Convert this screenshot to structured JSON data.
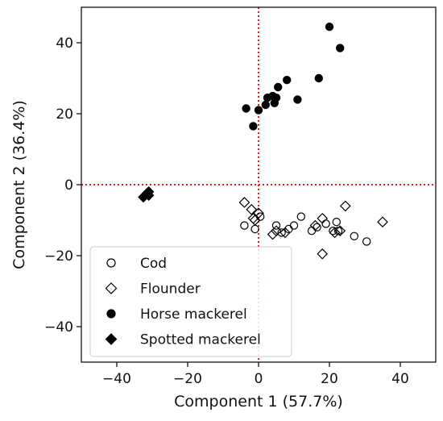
{
  "chart_data": {
    "type": "scatter",
    "title": "",
    "xlabel": "Component 1 (57.7%)",
    "ylabel": "Component 2 (36.4%)",
    "xlim": [
      -50,
      50
    ],
    "ylim": [
      -50,
      50
    ],
    "xticks": [
      -40,
      -20,
      0,
      20,
      40
    ],
    "yticks": [
      -40,
      -20,
      0,
      20,
      40
    ],
    "xtick_labels": [
      "−40",
      "−20",
      "0",
      "20",
      "40"
    ],
    "ytick_labels": [
      "−40",
      "−20",
      "0",
      "20",
      "40"
    ],
    "grid": false,
    "reference_lines": {
      "x": 0,
      "y": 0,
      "color": "#e0201a",
      "style": "dotted"
    },
    "legend": {
      "placement": "lower-left"
    },
    "series": [
      {
        "name": "Cod",
        "marker": "circle",
        "filled": false,
        "points": [
          [
            -4,
            -11.5
          ],
          [
            -1,
            -12.5
          ],
          [
            0.5,
            -9
          ],
          [
            5,
            -11.5
          ],
          [
            6.5,
            -13.5
          ],
          [
            8.5,
            -12.5
          ],
          [
            10,
            -11.5
          ],
          [
            12,
            -9
          ],
          [
            15,
            -13
          ],
          [
            16.5,
            -12
          ],
          [
            19,
            -11
          ],
          [
            21,
            -13
          ],
          [
            22,
            -10.5
          ],
          [
            22.5,
            -13
          ],
          [
            27,
            -14.5
          ],
          [
            30.5,
            -16
          ]
        ]
      },
      {
        "name": "Flounder",
        "marker": "diamond",
        "filled": false,
        "points": [
          [
            -4,
            -5
          ],
          [
            -2,
            -7
          ],
          [
            -1.5,
            -9.5
          ],
          [
            0,
            -8
          ],
          [
            -1,
            -10
          ],
          [
            4,
            -14
          ],
          [
            5,
            -13
          ],
          [
            7.5,
            -13.5
          ],
          [
            16,
            -11.5
          ],
          [
            18,
            -9.5
          ],
          [
            18,
            -19.5
          ],
          [
            21.5,
            -13.5
          ],
          [
            23,
            -13
          ],
          [
            24.5,
            -6
          ],
          [
            35,
            -10.5
          ]
        ]
      },
      {
        "name": "Horse mackerel",
        "marker": "circle",
        "filled": true,
        "points": [
          [
            -3.5,
            21.5
          ],
          [
            -1.5,
            16.5
          ],
          [
            0,
            21
          ],
          [
            2,
            22.5
          ],
          [
            2.5,
            24.5
          ],
          [
            4,
            25
          ],
          [
            4.5,
            23
          ],
          [
            5,
            24.5
          ],
          [
            5.5,
            27.5
          ],
          [
            8,
            29.5
          ],
          [
            11,
            24
          ],
          [
            17,
            30
          ],
          [
            20,
            44.5
          ],
          [
            23,
            38.5
          ]
        ]
      },
      {
        "name": "Spotted mackerel",
        "marker": "diamond",
        "filled": true,
        "points": [
          [
            -32.5,
            -3.5
          ],
          [
            -32,
            -3
          ],
          [
            -31.5,
            -2.5
          ],
          [
            -31,
            -2
          ],
          [
            -31,
            -3
          ]
        ]
      }
    ]
  }
}
